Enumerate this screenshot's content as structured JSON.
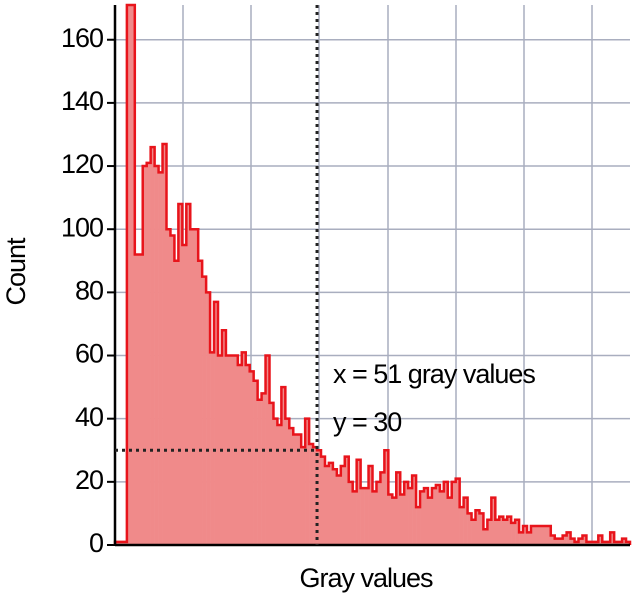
{
  "chart_data": {
    "type": "histogram",
    "x_label": "Gray values",
    "y_label": "Count",
    "color": "#f08a8a",
    "edge_color": "#e8141b",
    "bins": [
      0,
      1,
      2,
      3,
      4,
      5,
      6,
      7,
      8,
      9,
      10,
      11,
      12,
      13,
      14,
      15,
      16,
      17,
      18,
      19,
      20,
      21,
      22,
      23,
      24,
      25,
      26,
      27,
      28,
      29,
      30,
      31,
      32,
      33,
      34,
      35,
      36,
      37,
      38,
      39,
      40,
      41,
      42,
      43,
      44,
      45,
      46,
      47,
      48,
      49,
      50,
      51,
      52,
      53,
      54,
      55,
      56,
      57,
      58,
      59,
      60,
      61,
      62,
      63,
      64,
      65,
      66,
      67,
      68,
      69,
      70,
      71,
      72,
      73,
      74,
      75,
      76,
      77,
      78,
      79,
      80,
      81,
      82,
      83,
      84,
      85,
      86,
      87,
      88,
      89,
      90,
      91,
      92,
      93,
      94,
      95,
      96,
      97,
      98,
      99,
      100,
      101,
      102,
      103,
      104,
      105,
      106,
      107,
      108,
      109,
      110,
      111,
      112,
      113,
      114,
      115,
      116,
      117,
      118,
      119,
      120,
      121,
      122,
      123,
      124,
      125,
      126,
      127,
      128,
      129,
      130
    ],
    "values": [
      1,
      1,
      1,
      171,
      171,
      92,
      92,
      120,
      121,
      126,
      120,
      118,
      127,
      100,
      98,
      90,
      108,
      95,
      108,
      100,
      100,
      90,
      85,
      80,
      61,
      77,
      60,
      68,
      60,
      60,
      60,
      57,
      61,
      57,
      55,
      52,
      46,
      48,
      60,
      45,
      40,
      38,
      50,
      40,
      37,
      35,
      35,
      31,
      40,
      32,
      31,
      30,
      28,
      25,
      26,
      24,
      22,
      25,
      28,
      20,
      17,
      27,
      18,
      18,
      25,
      17,
      20,
      23,
      30,
      16,
      15,
      23,
      16,
      20,
      18,
      22,
      12,
      17,
      18,
      15,
      18,
      19,
      17,
      20,
      15,
      20,
      21,
      12,
      15,
      10,
      8,
      11,
      10,
      5,
      8,
      15,
      8,
      9,
      8,
      9,
      7,
      8,
      4,
      6,
      4,
      6,
      6,
      6,
      6,
      6,
      3,
      2,
      2,
      3,
      4,
      2,
      1,
      2,
      3,
      1,
      1,
      1,
      3,
      1,
      1,
      4,
      1,
      1,
      2,
      1
    ],
    "xlim": [
      0,
      130
    ],
    "ylim": [
      0,
      171
    ],
    "yticks": [
      0,
      20,
      40,
      60,
      80,
      100,
      120,
      140,
      160
    ],
    "grid": true,
    "crosshair": {
      "x": 51,
      "y": 30
    },
    "annotations": [
      "x = 51 gray values",
      "y = 30"
    ]
  }
}
